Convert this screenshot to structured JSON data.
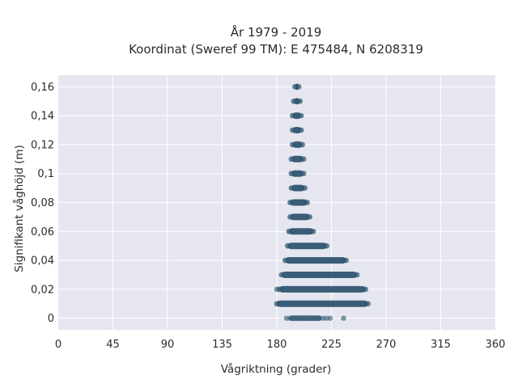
{
  "chart_data": {
    "type": "scatter",
    "title": "År 1979 - 2019",
    "subtitle": "Koordinat (Sweref 99 TM): E 475484, N 6208319",
    "xlabel": "Vågriktning (grader)",
    "ylabel": "Signifikant våghöjd (m)",
    "xlim": [
      0,
      360
    ],
    "ylim": [
      -0.008,
      0.168
    ],
    "xticks": [
      0,
      45,
      90,
      135,
      180,
      225,
      270,
      315,
      360
    ],
    "xtick_labels": [
      "0",
      "45",
      "90",
      "135",
      "180",
      "225",
      "270",
      "315",
      "360"
    ],
    "yticks": [
      0,
      0.02,
      0.04,
      0.06,
      0.08,
      0.1,
      0.12,
      0.14,
      0.16
    ],
    "ytick_labels": [
      "0",
      "0,02",
      "0,04",
      "0,06",
      "0,08",
      "0,1",
      "0,12",
      "0,14",
      "0,16"
    ],
    "grid": true,
    "colors": {
      "background": "#e5e6ef",
      "grid": "#ffffff",
      "marker": "#2f5570"
    },
    "series": [
      {
        "type": "bands",
        "bands": [
          {
            "y": 0.0,
            "xmin": 188,
            "xmax": 225,
            "sparse": true
          },
          {
            "y": 0.01,
            "xmin": 180,
            "xmax": 255
          },
          {
            "y": 0.02,
            "xmin": 182,
            "xmax": 253
          },
          {
            "y": 0.03,
            "xmin": 184,
            "xmax": 246
          },
          {
            "y": 0.04,
            "xmin": 187,
            "xmax": 237
          },
          {
            "y": 0.05,
            "xmin": 189,
            "xmax": 221
          },
          {
            "y": 0.06,
            "xmin": 190,
            "xmax": 210
          },
          {
            "y": 0.07,
            "xmin": 191,
            "xmax": 207
          },
          {
            "y": 0.08,
            "xmin": 191,
            "xmax": 205
          },
          {
            "y": 0.09,
            "xmin": 192,
            "xmax": 203
          },
          {
            "y": 0.1,
            "xmin": 192,
            "xmax": 202
          },
          {
            "y": 0.11,
            "xmin": 192,
            "xmax": 202
          },
          {
            "y": 0.12,
            "xmin": 193,
            "xmax": 201
          },
          {
            "y": 0.13,
            "xmin": 193,
            "xmax": 200
          },
          {
            "y": 0.14,
            "xmin": 193,
            "xmax": 200
          },
          {
            "y": 0.15,
            "xmin": 194,
            "xmax": 199
          },
          {
            "y": 0.16,
            "xmin": 195,
            "xmax": 198
          }
        ],
        "outliers": [
          {
            "x": 180,
            "y": 0.02
          },
          {
            "x": 235,
            "y": 0.0
          }
        ]
      }
    ]
  }
}
